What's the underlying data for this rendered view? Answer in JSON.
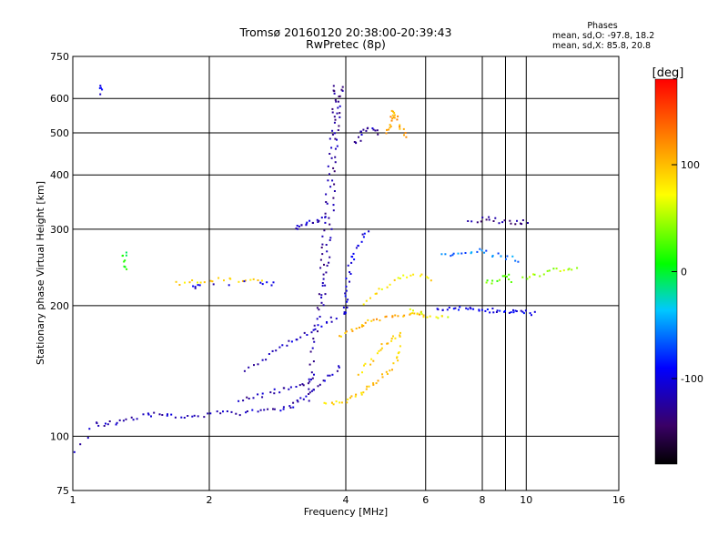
{
  "chart_data": {
    "type": "scatter",
    "title": "Tromsø 20160120 20:38:00-20:39:43",
    "subtitle": "RwPretec (8p)",
    "xlabel": "Frequency [MHz]",
    "ylabel": "Stationary phase Virtual Height [km]",
    "x_scale": "log",
    "y_scale": "log",
    "xlim": [
      1,
      16
    ],
    "ylim": [
      75,
      750
    ],
    "x_ticks": [
      1,
      2,
      4,
      6,
      8,
      10,
      16
    ],
    "x_gridlines": [
      2,
      4,
      6,
      8,
      9,
      10
    ],
    "y_ticks": [
      75,
      100,
      200,
      300,
      400,
      500,
      600,
      750
    ],
    "grid": true,
    "stats": {
      "heading": "Phases",
      "line_o": "mean, sd,O: -97.8, 18.2",
      "line_x": "mean, sd,X: 85.8, 20.8"
    },
    "colorbar": {
      "unit_label": "[deg]",
      "range": [
        -180,
        180
      ],
      "ticks": [
        100,
        0,
        -100
      ],
      "placement": "right"
    },
    "traces": [
      {
        "phase": -115,
        "points": [
          [
            1.02,
            92
          ],
          [
            1.12,
            107
          ],
          [
            1.18,
            106
          ],
          [
            1.25,
            108
          ],
          [
            1.35,
            110
          ],
          [
            1.45,
            112
          ],
          [
            1.55,
            112
          ],
          [
            1.65,
            112
          ],
          [
            1.8,
            111
          ],
          [
            1.95,
            112
          ],
          [
            2.1,
            113
          ],
          [
            2.3,
            113
          ],
          [
            2.5,
            114
          ],
          [
            2.7,
            115
          ],
          [
            2.9,
            116
          ],
          [
            3.05,
            118
          ],
          [
            3.2,
            122
          ],
          [
            3.35,
            126
          ],
          [
            3.5,
            132
          ],
          [
            3.7,
            138
          ],
          [
            3.9,
            145
          ]
        ]
      },
      {
        "phase": -120,
        "points": [
          [
            2.3,
            120
          ],
          [
            2.5,
            123
          ],
          [
            2.7,
            126
          ],
          [
            2.9,
            128
          ],
          [
            3.1,
            130
          ],
          [
            3.3,
            132
          ],
          [
            3.4,
            137
          ]
        ]
      },
      {
        "phase": -112,
        "points": [
          [
            2.4,
            140
          ],
          [
            2.6,
            150
          ],
          [
            2.8,
            158
          ],
          [
            3.0,
            165
          ],
          [
            3.2,
            170
          ],
          [
            3.4,
            176
          ],
          [
            3.6,
            182
          ],
          [
            3.8,
            188
          ]
        ]
      },
      {
        "phase": -125,
        "points": [
          [
            3.3,
            120
          ],
          [
            3.35,
            140
          ],
          [
            3.4,
            160
          ],
          [
            3.45,
            180
          ],
          [
            3.5,
            200
          ],
          [
            3.52,
            220
          ],
          [
            3.55,
            250
          ],
          [
            3.57,
            280
          ],
          [
            3.6,
            320
          ],
          [
            3.65,
            360
          ],
          [
            3.7,
            420
          ],
          [
            3.72,
            480
          ],
          [
            3.75,
            540
          ],
          [
            3.78,
            600
          ],
          [
            3.8,
            640
          ]
        ]
      },
      {
        "phase": -125,
        "points": [
          [
            3.55,
            200
          ],
          [
            3.6,
            230
          ],
          [
            3.65,
            260
          ],
          [
            3.68,
            290
          ],
          [
            3.72,
            330
          ],
          [
            3.75,
            380
          ],
          [
            3.78,
            430
          ],
          [
            3.8,
            480
          ],
          [
            3.82,
            520
          ],
          [
            3.85,
            560
          ],
          [
            3.9,
            600
          ],
          [
            3.92,
            635
          ]
        ]
      },
      {
        "phase": -110,
        "points": [
          [
            3.1,
            300
          ],
          [
            3.2,
            305
          ],
          [
            3.3,
            310
          ],
          [
            3.45,
            312
          ],
          [
            3.6,
            318
          ]
        ]
      },
      {
        "phase": -105,
        "points": [
          [
            4.0,
            190
          ],
          [
            4.0,
            200
          ],
          [
            4.02,
            215
          ],
          [
            4.05,
            230
          ],
          [
            4.1,
            250
          ],
          [
            4.2,
            265
          ],
          [
            4.3,
            280
          ],
          [
            4.5,
            300
          ]
        ]
      },
      {
        "phase": -118,
        "points": [
          [
            4.2,
            470
          ],
          [
            4.3,
            490
          ],
          [
            4.4,
            505
          ],
          [
            4.55,
            510
          ],
          [
            4.7,
            500
          ]
        ]
      },
      {
        "phase": 95,
        "points": [
          [
            3.6,
            118
          ],
          [
            3.8,
            119
          ],
          [
            4.0,
            121
          ],
          [
            4.2,
            124
          ],
          [
            4.4,
            127
          ],
          [
            4.6,
            131
          ],
          [
            4.8,
            136
          ],
          [
            5.0,
            142
          ],
          [
            5.2,
            150
          ],
          [
            5.3,
            160
          ]
        ]
      },
      {
        "phase": 105,
        "points": [
          [
            3.9,
            170
          ],
          [
            4.1,
            175
          ],
          [
            4.3,
            180
          ],
          [
            4.5,
            183
          ],
          [
            4.8,
            186
          ],
          [
            5.1,
            188
          ],
          [
            5.4,
            190
          ],
          [
            5.7,
            191
          ],
          [
            6.0,
            192
          ]
        ]
      },
      {
        "phase": 88,
        "points": [
          [
            4.3,
            140
          ],
          [
            4.5,
            148
          ],
          [
            4.7,
            156
          ],
          [
            4.9,
            163
          ],
          [
            5.1,
            168
          ],
          [
            5.3,
            172
          ]
        ]
      },
      {
        "phase": 110,
        "points": [
          [
            4.9,
            500
          ],
          [
            5.0,
            520
          ],
          [
            5.05,
            545
          ],
          [
            5.1,
            560
          ],
          [
            5.2,
            540
          ],
          [
            5.3,
            510
          ],
          [
            5.4,
            490
          ]
        ]
      },
      {
        "phase": 80,
        "points": [
          [
            4.4,
            200
          ],
          [
            4.7,
            215
          ],
          [
            5.0,
            225
          ],
          [
            5.4,
            235
          ],
          [
            5.8,
            235
          ],
          [
            6.2,
            228
          ]
        ]
      },
      {
        "phase": -100,
        "points": [
          [
            6.3,
            195
          ],
          [
            6.7,
            196
          ],
          [
            7.1,
            197
          ],
          [
            7.5,
            198
          ],
          [
            7.9,
            196
          ],
          [
            8.3,
            195
          ],
          [
            8.7,
            195
          ],
          [
            9.1,
            194
          ],
          [
            9.5,
            193
          ],
          [
            9.9,
            193
          ],
          [
            10.4,
            192
          ]
        ]
      },
      {
        "phase": -60,
        "points": [
          [
            6.5,
            260
          ],
          [
            7.0,
            262
          ],
          [
            7.5,
            265
          ],
          [
            8.0,
            268
          ],
          [
            8.5,
            262
          ],
          [
            9.0,
            258
          ],
          [
            9.5,
            255
          ]
        ]
      },
      {
        "phase": 50,
        "points": [
          [
            9.8,
            230
          ],
          [
            10.5,
            235
          ],
          [
            11.2,
            240
          ],
          [
            12.0,
            243
          ],
          [
            13.0,
            245
          ]
        ]
      },
      {
        "phase": -130,
        "points": [
          [
            7.5,
            310
          ],
          [
            8.0,
            318
          ],
          [
            8.5,
            315
          ],
          [
            9.0,
            312
          ],
          [
            9.5,
            310
          ],
          [
            10.0,
            312
          ]
        ]
      },
      {
        "phase": 30,
        "points": [
          [
            8.2,
            225
          ],
          [
            8.6,
            230
          ],
          [
            9.0,
            235
          ],
          [
            9.3,
            228
          ]
        ]
      },
      {
        "phase": 70,
        "points": [
          [
            5.5,
            195
          ],
          [
            5.9,
            190
          ],
          [
            6.3,
            188
          ],
          [
            6.7,
            188
          ]
        ]
      },
      {
        "phase": 85,
        "points": [
          [
            1.7,
            225
          ],
          [
            1.85,
            227
          ],
          [
            2.0,
            229
          ],
          [
            2.2,
            230
          ],
          [
            2.4,
            228
          ],
          [
            2.6,
            228
          ]
        ]
      },
      {
        "phase": 10,
        "points": [
          [
            1.3,
            240
          ],
          [
            1.3,
            255
          ],
          [
            1.3,
            265
          ]
        ]
      },
      {
        "phase": -95,
        "points": [
          [
            1.15,
            640
          ],
          [
            1.15,
            620
          ]
        ]
      },
      {
        "phase": -105,
        "points": [
          [
            1.85,
            220
          ],
          [
            1.9,
            225
          ],
          [
            2.6,
            225
          ],
          [
            2.8,
            224
          ]
        ]
      }
    ]
  }
}
